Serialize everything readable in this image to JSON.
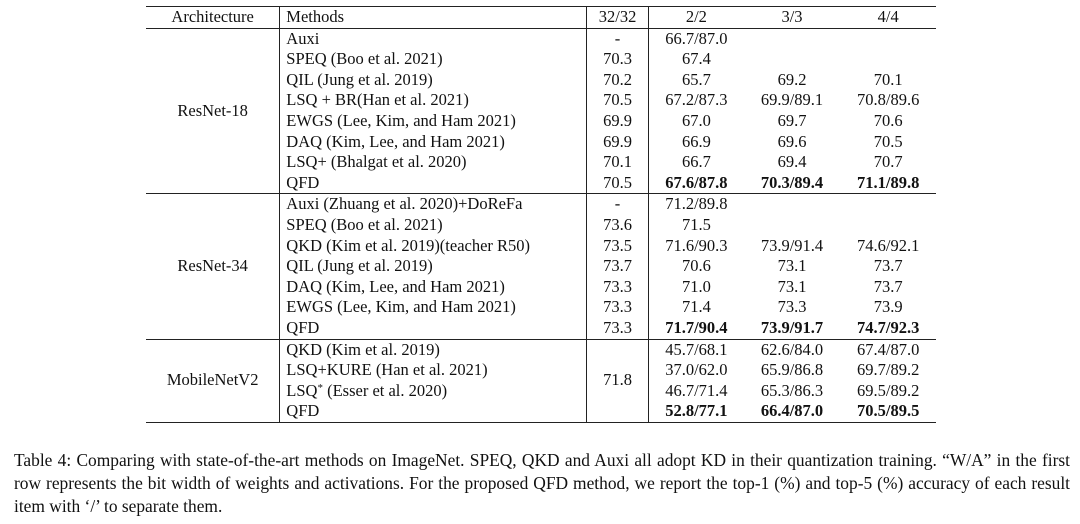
{
  "table": {
    "headers": {
      "architecture": "Architecture",
      "methods": "Methods",
      "fp": "32/32",
      "b2": "2/2",
      "b3": "3/3",
      "b4": "4/4"
    },
    "groups": [
      {
        "architecture": "ResNet-18",
        "fp_shared": "",
        "rows": [
          {
            "method": "Auxi",
            "fp": "-",
            "b2": "66.7/87.0",
            "b3": "",
            "b4": "",
            "bold": false
          },
          {
            "method": "SPEQ (Boo et al. 2021)",
            "fp": "70.3",
            "b2": "67.4",
            "b3": "",
            "b4": "",
            "bold": false
          },
          {
            "method": "QIL (Jung et al. 2019)",
            "fp": "70.2",
            "b2": "65.7",
            "b3": "69.2",
            "b4": "70.1",
            "bold": false
          },
          {
            "method": "LSQ + BR(Han et al. 2021)",
            "fp": "70.5",
            "b2": "67.2/87.3",
            "b3": "69.9/89.1",
            "b4": "70.8/89.6",
            "bold": false
          },
          {
            "method": "EWGS (Lee, Kim, and Ham 2021)",
            "fp": "69.9",
            "b2": "67.0",
            "b3": "69.7",
            "b4": "70.6",
            "bold": false
          },
          {
            "method": "DAQ (Kim, Lee, and Ham 2021)",
            "fp": "69.9",
            "b2": "66.9",
            "b3": "69.6",
            "b4": "70.5",
            "bold": false
          },
          {
            "method": "LSQ+ (Bhalgat et al. 2020)",
            "fp": "70.1",
            "b2": "66.7",
            "b3": "69.4",
            "b4": "70.7",
            "bold": false
          },
          {
            "method": "QFD",
            "fp": "70.5",
            "b2": "67.6/87.8",
            "b3": "70.3/89.4",
            "b4": "71.1/89.8",
            "bold": true
          }
        ]
      },
      {
        "architecture": "ResNet-34",
        "fp_shared": "",
        "rows": [
          {
            "method": "Auxi (Zhuang et al. 2020)+DoReFa",
            "fp": "-",
            "b2": "71.2/89.8",
            "b3": "",
            "b4": "",
            "bold": false
          },
          {
            "method": "SPEQ (Boo et al. 2021)",
            "fp": "73.6",
            "b2": "71.5",
            "b3": "",
            "b4": "",
            "bold": false
          },
          {
            "method": "QKD (Kim et al. 2019)(teacher R50)",
            "fp": "73.5",
            "b2": "71.6/90.3",
            "b3": "73.9/91.4",
            "b4": "74.6/92.1",
            "bold": false
          },
          {
            "method": "QIL (Jung et al. 2019)",
            "fp": "73.7",
            "b2": "70.6",
            "b3": "73.1",
            "b4": "73.7",
            "bold": false
          },
          {
            "method": "DAQ (Kim, Lee, and Ham 2021)",
            "fp": "73.3",
            "b2": "71.0",
            "b3": "73.1",
            "b4": "73.7",
            "bold": false
          },
          {
            "method": "EWGS (Lee, Kim, and Ham 2021)",
            "fp": "73.3",
            "b2": "71.4",
            "b3": "73.3",
            "b4": "73.9",
            "bold": false
          },
          {
            "method": "QFD",
            "fp": "73.3",
            "b2": "71.7/90.4",
            "b3": "73.9/91.7",
            "b4": "74.7/92.3",
            "bold": true
          }
        ]
      },
      {
        "architecture": "MobileNetV2",
        "fp_shared": "71.8",
        "rows": [
          {
            "method": "QKD (Kim et al. 2019)",
            "method_sup": "",
            "method_suffix": "",
            "b2": "45.7/68.1",
            "b3": "62.6/84.0",
            "b4": "67.4/87.0",
            "bold": false
          },
          {
            "method": "LSQ+KURE (Han et al. 2021)",
            "method_sup": "",
            "method_suffix": "",
            "b2": "37.0/62.0",
            "b3": "65.9/86.8",
            "b4": "69.7/89.2",
            "bold": false
          },
          {
            "method": "LSQ",
            "method_sup": "*",
            "method_suffix": " (Esser et al. 2020)",
            "b2": "46.7/71.4",
            "b3": "65.3/86.3",
            "b4": "69.5/89.2",
            "bold": false
          },
          {
            "method": "QFD",
            "method_sup": "",
            "method_suffix": "",
            "b2": "52.8/77.1",
            "b3": "66.4/87.0",
            "b4": "70.5/89.5",
            "bold": true
          }
        ]
      }
    ]
  },
  "caption": "Table 4: Comparing with state-of-the-art methods on ImageNet. SPEQ, QKD and Auxi all adopt KD in their quantization training. “W/A” in the first row represents the bit width of weights and activations. For the proposed QFD method, we report the top-1 (%) and top-5 (%) accuracy of each result item with ‘/’ to separate them."
}
